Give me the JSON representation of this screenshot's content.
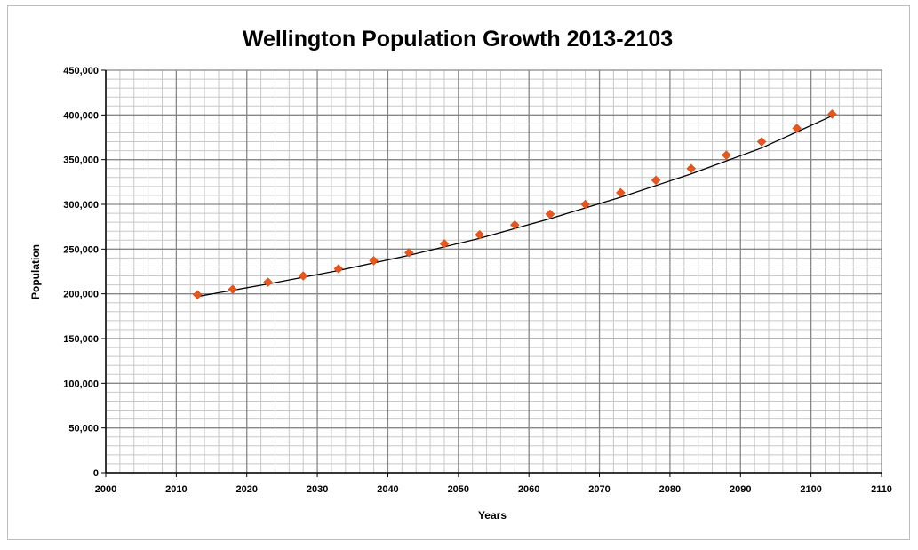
{
  "chart_data": {
    "type": "scatter",
    "title": "Wellington Population Growth 2013-2103",
    "xlabel": "Years",
    "ylabel": "Population",
    "xlim": [
      2000,
      2110
    ],
    "ylim": [
      0,
      450000
    ],
    "x_ticks": [
      2000,
      2010,
      2020,
      2030,
      2040,
      2050,
      2060,
      2070,
      2080,
      2090,
      2100,
      2110
    ],
    "x_tick_labels": [
      "2000",
      "2010",
      "2020",
      "2030",
      "2040",
      "2050",
      "2060",
      "2070",
      "2080",
      "2090",
      "2100",
      "2110"
    ],
    "y_ticks": [
      0,
      50000,
      100000,
      150000,
      200000,
      250000,
      300000,
      350000,
      400000,
      450000
    ],
    "y_tick_labels": [
      "0",
      "50,000",
      "100,000",
      "150,000",
      "200,000",
      "250,000",
      "300,000",
      "350,000",
      "400,000",
      "450,000"
    ],
    "grid": true,
    "legend": "none",
    "series": [
      {
        "marker": "diamond",
        "color": "#e8561c",
        "x": [
          2013,
          2018,
          2023,
          2028,
          2033,
          2038,
          2043,
          2048,
          2053,
          2058,
          2063,
          2068,
          2073,
          2078,
          2083,
          2088,
          2093,
          2098,
          2103
        ],
        "y": [
          199000,
          205000,
          213000,
          220000,
          228000,
          237000,
          246000,
          256000,
          266000,
          277000,
          289000,
          300000,
          313000,
          327000,
          340000,
          355000,
          370000,
          385000,
          401000
        ]
      }
    ],
    "trendline": {
      "color": "#000000",
      "x": [
        2013,
        2023,
        2033,
        2043,
        2053,
        2063,
        2073,
        2083,
        2093,
        2103
      ],
      "y": [
        197000,
        211000,
        226000,
        243000,
        262000,
        284000,
        308000,
        334000,
        363000,
        399000
      ]
    }
  },
  "colors": {
    "marker": "#e8561c",
    "major_grid": "#878787",
    "minor_grid": "#c8c8c8",
    "axis": "#000000"
  }
}
